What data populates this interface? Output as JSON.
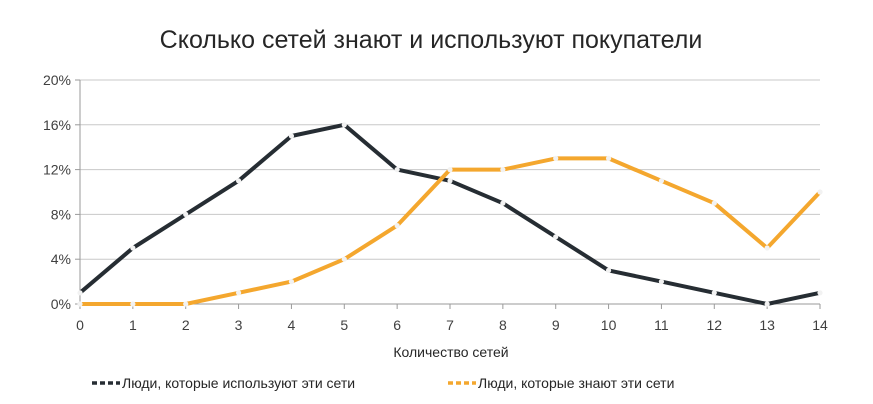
{
  "chart_data": {
    "type": "line",
    "title": "Сколько сетей знают и используют покупатели",
    "xlabel": "Количество сетей",
    "ylabel": "",
    "x": [
      0,
      1,
      2,
      3,
      4,
      5,
      6,
      7,
      8,
      9,
      10,
      11,
      12,
      13,
      14
    ],
    "ylim": [
      0,
      20
    ],
    "yticks": [
      "0%",
      "4%",
      "8%",
      "12%",
      "16%",
      "20%"
    ],
    "ytick_values": [
      0,
      4,
      8,
      12,
      16,
      20
    ],
    "grid": true,
    "legend_position": "bottom",
    "series": [
      {
        "name": "Люди, которые используют эти сети",
        "color": "#262d33",
        "values": [
          1,
          5,
          8,
          11,
          15,
          16,
          12,
          11,
          9,
          6,
          3,
          2,
          1,
          0,
          1
        ]
      },
      {
        "name": "Люди, которые знают эти сети",
        "color": "#f4a72e",
        "values": [
          0,
          0,
          0,
          1,
          2,
          4,
          7,
          12,
          12,
          13,
          13,
          11,
          9,
          5,
          10
        ]
      }
    ]
  }
}
